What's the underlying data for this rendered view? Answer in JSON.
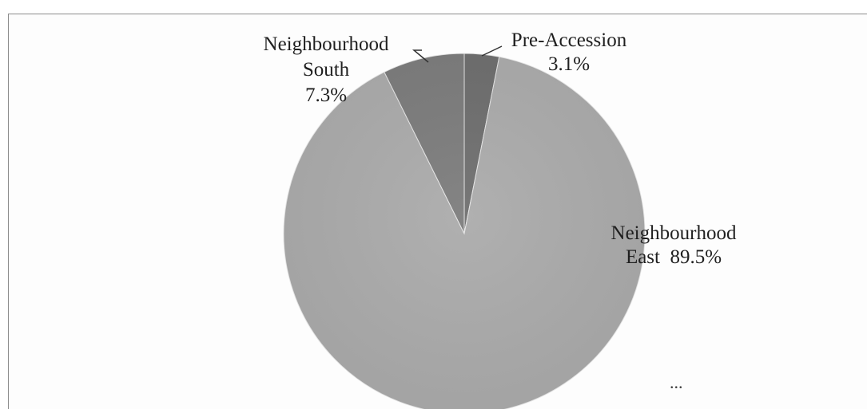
{
  "chart_data": {
    "type": "pie",
    "categories": [
      "Pre-Accession",
      "Neighbourhood East",
      "Neighbourhood South"
    ],
    "values": [
      3.1,
      89.5,
      7.3
    ],
    "labels": [
      {
        "lines": [
          "Pre-Accession",
          "3.1%"
        ]
      },
      {
        "lines": [
          "Neighbourhood",
          "East  89.5%"
        ]
      },
      {
        "lines": [
          "Neighbourhood",
          "South",
          "7.3%"
        ]
      }
    ],
    "colors": [
      "#6e6e6e",
      "#ababab",
      "#7c7c7c"
    ],
    "start_angle": "12 o'clock",
    "direction": "clockwise",
    "legend": "none",
    "title": "",
    "footer_text": "..."
  }
}
